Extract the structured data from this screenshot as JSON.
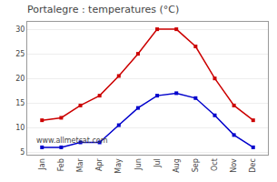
{
  "chart_data": {
    "type": "line",
    "title": "Portalegre : temperatures (°C)",
    "categories": [
      "Jan",
      "Feb",
      "Mar",
      "Apr",
      "May",
      "Jun",
      "Jul",
      "Aug",
      "Sep",
      "Oct",
      "Nov",
      "Dec"
    ],
    "series": [
      {
        "color": "#cc0000",
        "marker": "square",
        "values": [
          11.5,
          12.0,
          14.5,
          16.5,
          20.5,
          25.0,
          30.0,
          30.0,
          26.5,
          20.0,
          14.5,
          11.5
        ]
      },
      {
        "color": "#0000cc",
        "marker": "square",
        "values": [
          6.0,
          6.0,
          7.0,
          7.0,
          10.5,
          14.0,
          16.5,
          17.0,
          16.0,
          12.5,
          8.5,
          6.0
        ]
      }
    ],
    "ylim": [
      4.5,
      31.5
    ],
    "yticks": [
      5,
      10,
      15,
      20,
      25,
      30
    ],
    "grid": "y",
    "annotations": [
      "www.allmetsat.com"
    ]
  }
}
